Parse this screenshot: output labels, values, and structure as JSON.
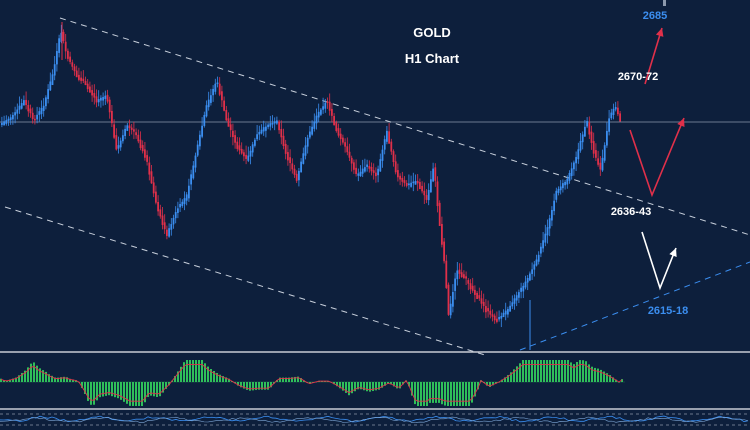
{
  "chart_data": {
    "type": "candlestick",
    "title": "GOLD",
    "subtitle": "H1 Chart",
    "colors": {
      "background": "#0d1f3c",
      "bull": "#3b8ef0",
      "bear": "#e0304a",
      "channel": "#c8d0dc",
      "support": "#3b8ef0",
      "path_up": "#e0304a",
      "path_down": "#ffffff",
      "histogram": "#2fbf5a",
      "signal": "#e0304a"
    },
    "levels": [
      {
        "label": "2685",
        "color": "#3b8ef0"
      },
      {
        "label": "2670-72",
        "color": "#ffffff"
      },
      {
        "label": "2636-43",
        "color": "#ffffff"
      },
      {
        "label": "2615-18",
        "color": "#3b8ef0"
      }
    ],
    "scenarios": [
      "bullish continuation toward 2685",
      "pullback toward 2615-18 support"
    ],
    "indicator": {
      "type": "histogram",
      "name": "momentum oscillator"
    },
    "grid": false
  }
}
